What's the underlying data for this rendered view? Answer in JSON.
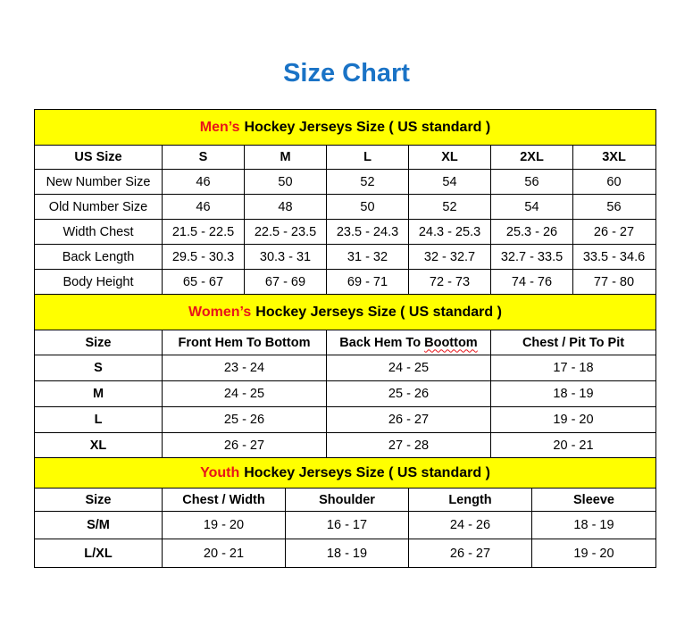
{
  "title": "Size Chart",
  "colors": {
    "title": "#1a73c6",
    "header_bg": "#ffff00",
    "accent": "#e8141a"
  },
  "sections": [
    {
      "id": "men",
      "accent": "Men’s",
      "heading": "Hockey Jerseys Size ( US standard )",
      "columns": [
        "US Size",
        "S",
        "M",
        "L",
        "XL",
        "2XL",
        "3XL"
      ],
      "rows": [
        [
          "New Number Size",
          "46",
          "50",
          "52",
          "54",
          "56",
          "60"
        ],
        [
          "Old Number Size",
          "46",
          "48",
          "50",
          "52",
          "54",
          "56"
        ],
        [
          "Width Chest",
          "21.5 - 22.5",
          "22.5 - 23.5",
          "23.5 - 24.3",
          "24.3 - 25.3",
          "25.3 - 26",
          "26 - 27"
        ],
        [
          "Back Length",
          "29.5 - 30.3",
          "30.3 - 31",
          "31 - 32",
          "32 - 32.7",
          "32.7 - 33.5",
          "33.5 - 34.6"
        ],
        [
          "Body Height",
          "65 - 67",
          "67 - 69",
          "69 - 71",
          "72 - 73",
          "74 - 76",
          "77 - 80"
        ]
      ]
    },
    {
      "id": "women",
      "accent": "Women’s",
      "heading": "Hockey Jerseys Size ( US standard )",
      "columns": [
        "Size",
        "Front Hem To Bottom",
        "Back Hem To Boottom",
        "Chest / Pit To Pit"
      ],
      "rows": [
        [
          "S",
          "23 - 24",
          "24 - 25",
          "17 - 18"
        ],
        [
          "M",
          "24 - 25",
          "25 - 26",
          "18 - 19"
        ],
        [
          "L",
          "25 - 26",
          "26 - 27",
          "19 - 20"
        ],
        [
          "XL",
          "26 - 27",
          "27 - 28",
          "20 - 21"
        ]
      ]
    },
    {
      "id": "youth",
      "accent": "Youth",
      "heading": "Hockey Jerseys Size ( US standard )",
      "columns": [
        "Size",
        "Chest / Width",
        "Shoulder",
        "Length",
        "Sleeve"
      ],
      "rows": [
        [
          "S/M",
          "19 - 20",
          "16 - 17",
          "24 - 26",
          "18 - 19"
        ],
        [
          "L/XL",
          "20 - 21",
          "18 - 19",
          "26 - 27",
          "19 - 20"
        ]
      ]
    }
  ]
}
